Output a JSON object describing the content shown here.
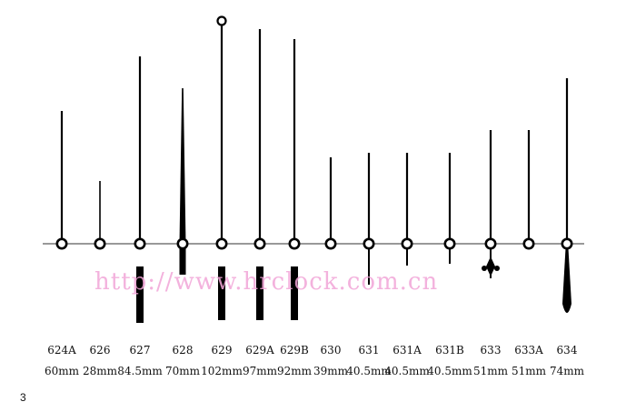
{
  "watermark": "http://www.hrclock.com.cn",
  "page_number": "3",
  "hands": [
    {
      "code": "624A",
      "length": "60mm",
      "style": "plain"
    },
    {
      "code": "626",
      "length": "28mm",
      "style": "plain"
    },
    {
      "code": "627",
      "length": "84.5mm",
      "style": "counterweight"
    },
    {
      "code": "628",
      "length": "70mm",
      "style": "tapered"
    },
    {
      "code": "629",
      "length": "102mm",
      "style": "ring-tip"
    },
    {
      "code": "629A",
      "length": "97mm",
      "style": "counterweight"
    },
    {
      "code": "629B",
      "length": "92mm",
      "style": "counterweight"
    },
    {
      "code": "630",
      "length": "39mm",
      "style": "plain"
    },
    {
      "code": "631",
      "length": "40.5mm",
      "style": "long-tail"
    },
    {
      "code": "631A",
      "length": "40.5mm",
      "style": "tail"
    },
    {
      "code": "631B",
      "length": "40.5mm",
      "style": "tail"
    },
    {
      "code": "633",
      "length": "51mm",
      "style": "decorative-tail"
    },
    {
      "code": "633A",
      "length": "51mm",
      "style": "plain"
    },
    {
      "code": "634",
      "length": "74mm",
      "style": "teardrop-tail"
    }
  ]
}
